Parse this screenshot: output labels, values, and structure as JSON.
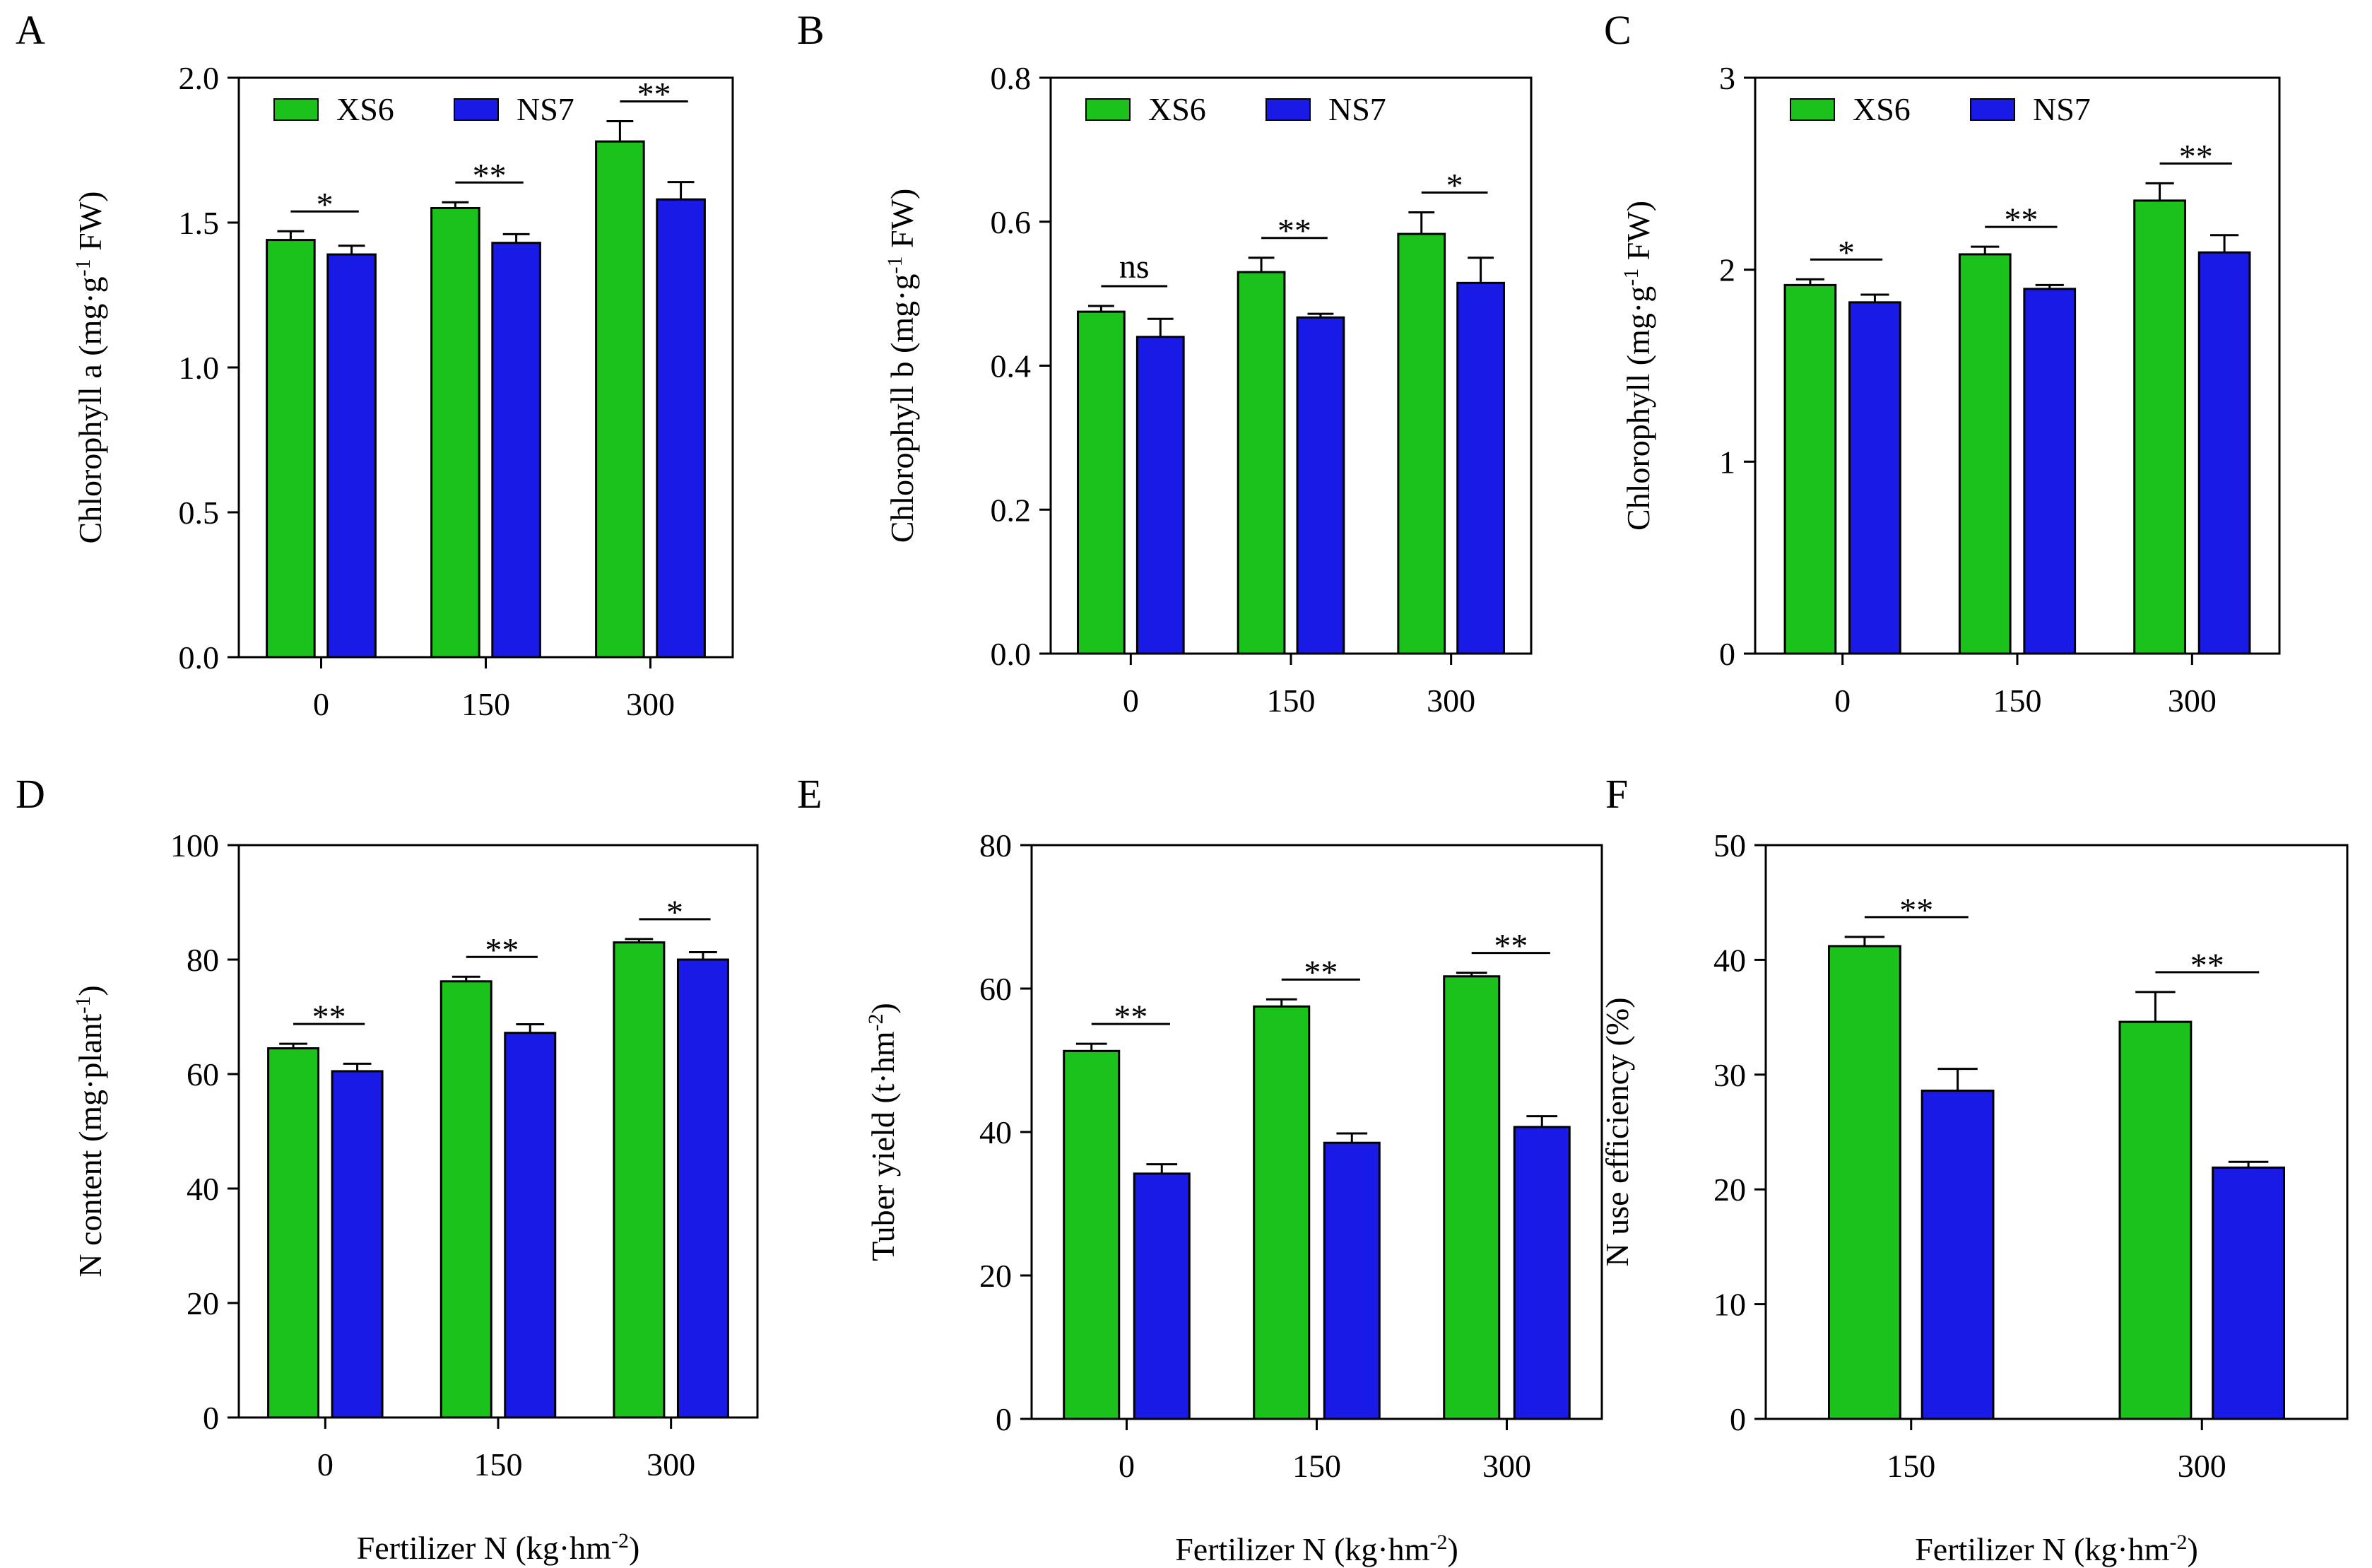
{
  "colors": {
    "XS6": "#1bc21b",
    "NS7": "#1a1ae6"
  },
  "chart_data": [
    {
      "panel": "A",
      "type": "bar",
      "categories": [
        "0",
        "150",
        "300"
      ],
      "series": [
        {
          "name": "XS6",
          "values": [
            1.44,
            1.55,
            1.78
          ],
          "errors": [
            0.03,
            0.02,
            0.07
          ]
        },
        {
          "name": "NS7",
          "values": [
            1.39,
            1.43,
            1.58
          ],
          "errors": [
            0.03,
            0.03,
            0.06
          ]
        }
      ],
      "significance": [
        "*",
        "**",
        "**"
      ],
      "ylabel": "Chlorophyll a (mg·g",
      "ylabel_sup": "-1",
      "ylabel_tail": " FW)",
      "xlabel": "",
      "ylim": [
        0,
        2.0
      ],
      "yticks": [
        "0.0",
        "0.5",
        "1.0",
        "1.5",
        "2.0"
      ],
      "legend": [
        "XS6",
        "NS7"
      ]
    },
    {
      "panel": "B",
      "type": "bar",
      "categories": [
        "0",
        "150",
        "300"
      ],
      "series": [
        {
          "name": "XS6",
          "values": [
            0.475,
            0.53,
            0.583
          ],
          "errors": [
            0.008,
            0.02,
            0.03
          ]
        },
        {
          "name": "NS7",
          "values": [
            0.44,
            0.467,
            0.515
          ],
          "errors": [
            0.025,
            0.005,
            0.035
          ]
        }
      ],
      "significance": [
        "ns",
        "**",
        "*"
      ],
      "ylabel": "Chlorophyll b (mg·g",
      "ylabel_sup": "-1",
      "ylabel_tail": " FW)",
      "xlabel": "",
      "ylim": [
        0,
        0.8
      ],
      "yticks": [
        "0.0",
        "0.2",
        "0.4",
        "0.6",
        "0.8"
      ],
      "legend": [
        "XS6",
        "NS7"
      ]
    },
    {
      "panel": "C",
      "type": "bar",
      "categories": [
        "0",
        "150",
        "300"
      ],
      "series": [
        {
          "name": "XS6",
          "values": [
            1.92,
            2.08,
            2.36
          ],
          "errors": [
            0.03,
            0.04,
            0.09
          ]
        },
        {
          "name": "NS7",
          "values": [
            1.83,
            1.9,
            2.09
          ],
          "errors": [
            0.04,
            0.02,
            0.09
          ]
        }
      ],
      "significance": [
        "*",
        "**",
        "**"
      ],
      "ylabel": "Chlorophyll (mg·g",
      "ylabel_sup": "-1",
      "ylabel_tail": " FW)",
      "xlabel": "",
      "ylim": [
        0,
        3
      ],
      "yticks": [
        "0",
        "1",
        "2",
        "3"
      ],
      "legend": [
        "XS6",
        "NS7"
      ]
    },
    {
      "panel": "D",
      "type": "bar",
      "categories": [
        "0",
        "150",
        "300"
      ],
      "series": [
        {
          "name": "XS6",
          "values": [
            64.5,
            76.2,
            83.0
          ],
          "errors": [
            0.8,
            0.8,
            0.6
          ]
        },
        {
          "name": "NS7",
          "values": [
            60.5,
            67.2,
            80.0
          ],
          "errors": [
            1.3,
            1.5,
            1.3
          ]
        }
      ],
      "significance": [
        "**",
        "**",
        "*"
      ],
      "ylabel": "N content (mg·plant",
      "ylabel_sup": "-1",
      "ylabel_tail": ")",
      "xlabel": "Fertilizer N (kg·hm",
      "xlabel_sup": "-2",
      "xlabel_tail": ")",
      "ylim": [
        0,
        100
      ],
      "yticks": [
        "0",
        "20",
        "40",
        "60",
        "80",
        "100"
      ]
    },
    {
      "panel": "E",
      "type": "bar",
      "categories": [
        "0",
        "150",
        "300"
      ],
      "series": [
        {
          "name": "XS6",
          "values": [
            51.3,
            57.5,
            61.7
          ],
          "errors": [
            1.0,
            1.0,
            0.5
          ]
        },
        {
          "name": "NS7",
          "values": [
            34.2,
            38.5,
            40.7
          ],
          "errors": [
            1.3,
            1.3,
            1.5
          ]
        }
      ],
      "significance": [
        "**",
        "**",
        "**"
      ],
      "ylabel": "Tuber yield (t·hm",
      "ylabel_sup": "-2",
      "ylabel_tail": ")",
      "xlabel": "Fertilizer N (kg·hm",
      "xlabel_sup": "-2",
      "xlabel_tail": ")",
      "ylim": [
        0,
        80
      ],
      "yticks": [
        "0",
        "20",
        "40",
        "60",
        "80"
      ]
    },
    {
      "panel": "F",
      "type": "bar",
      "categories": [
        "150",
        "300"
      ],
      "series": [
        {
          "name": "XS6",
          "values": [
            41.2,
            34.6
          ],
          "errors": [
            0.8,
            2.6
          ]
        },
        {
          "name": "NS7",
          "values": [
            28.6,
            21.9
          ],
          "errors": [
            1.9,
            0.5
          ]
        }
      ],
      "significance": [
        "**",
        "**"
      ],
      "ylabel": "N use efficiency (%)",
      "ylabel_sup": "",
      "ylabel_tail": "",
      "xlabel": "Fertilizer N (kg·hm",
      "xlabel_sup": "-2",
      "xlabel_tail": ")",
      "ylim": [
        0,
        50
      ],
      "yticks": [
        "0",
        "10",
        "20",
        "30",
        "40",
        "50"
      ]
    }
  ]
}
